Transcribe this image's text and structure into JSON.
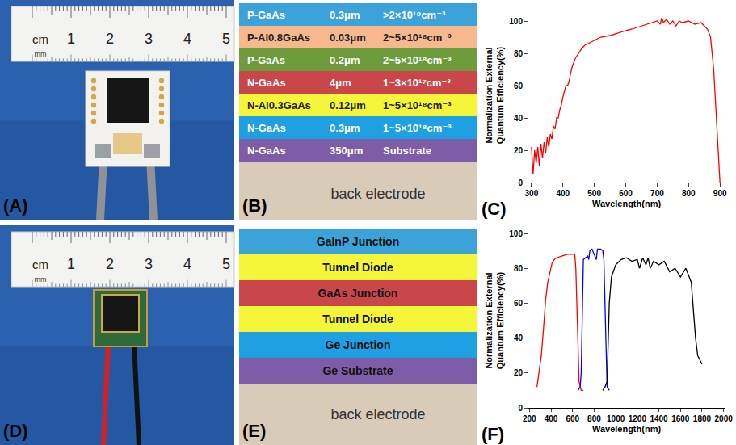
{
  "panels": {
    "A": {
      "label": "(A)",
      "ruler": {
        "unit": "cm",
        "numbers": [
          "1",
          "2",
          "3",
          "4",
          "5"
        ],
        "small_unit": "mm"
      }
    },
    "B": {
      "label": "(B)",
      "layers": [
        {
          "material": "P-GaAs",
          "thickness": "0.3μm",
          "doping": ">2×10¹⁹cm⁻³",
          "color": "#3ba3d9"
        },
        {
          "material": "P-Al0.8GaAs",
          "thickness": "0.03μm",
          "doping": "2~5×10¹⁸cm⁻³",
          "color": "#f7b88e"
        },
        {
          "material": "P-GaAs",
          "thickness": "0.2μm",
          "doping": "2~5×10¹⁸cm⁻³",
          "color": "#6e9b3b"
        },
        {
          "material": "N-GaAs",
          "thickness": "4μm",
          "doping": "1~3×10¹⁷cm⁻³",
          "color": "#c9474b"
        },
        {
          "material": "N-Al0.3GaAs",
          "thickness": "0.12μm",
          "doping": "1~5×10¹⁸cm⁻³",
          "color": "#f5f53a"
        },
        {
          "material": "N-GaAs",
          "thickness": "0.3μm",
          "doping": "1~5×10¹⁸cm⁻³",
          "color": "#1fa0e3"
        },
        {
          "material": "N-GaAs",
          "thickness": "350μm",
          "doping": "Substrate",
          "color": "#7d5da8"
        }
      ],
      "base": {
        "text": "back electrode",
        "color": "#d8ccb8"
      }
    },
    "C": {
      "label": "(C)"
    },
    "D": {
      "label": "(D)",
      "ruler": {
        "unit": "cm",
        "numbers": [
          "1",
          "2",
          "3",
          "4",
          "5"
        ],
        "small_unit": "mm"
      }
    },
    "E": {
      "label": "(E)",
      "layers": [
        {
          "material": "GaInP Junction",
          "color": "#3ba3d9"
        },
        {
          "material": "Tunnel Diode",
          "color": "#f5f53a"
        },
        {
          "material": "GaAs Junction",
          "color": "#c9474b"
        },
        {
          "material": "Tunnel Diode",
          "color": "#f5f53a"
        },
        {
          "material": "Ge Junction",
          "color": "#1fa0e3"
        },
        {
          "material": "Ge Substrate",
          "color": "#7d5da8"
        }
      ],
      "base": {
        "text": "back electrode",
        "color": "#d8ccb8"
      }
    },
    "F": {
      "label": "(F)"
    }
  },
  "chart_data": [
    {
      "type": "line",
      "x_label": "Wavelength(nm)",
      "y_label": "Normalization External Quantum Efficiency(%)",
      "xlim": [
        290,
        915
      ],
      "xticks": [
        300,
        400,
        500,
        600,
        700,
        800,
        900
      ],
      "ylim": [
        0,
        108
      ],
      "yticks": [
        0,
        20,
        40,
        60,
        80,
        100
      ],
      "grid": false,
      "series": [
        {
          "color": "#ff0000",
          "x": [
            300,
            305,
            310,
            315,
            320,
            325,
            330,
            335,
            340,
            345,
            350,
            355,
            360,
            365,
            370,
            375,
            380,
            385,
            390,
            395,
            400,
            405,
            410,
            415,
            420,
            425,
            430,
            440,
            450,
            460,
            470,
            480,
            500,
            520,
            550,
            580,
            600,
            620,
            650,
            680,
            700,
            710,
            715,
            720,
            730,
            740,
            750,
            760,
            770,
            780,
            800,
            820,
            840,
            850,
            860,
            870,
            880,
            890,
            895,
            900
          ],
          "values": [
            22,
            5,
            20,
            12,
            22,
            10,
            24,
            15,
            25,
            18,
            28,
            22,
            30,
            27,
            35,
            33,
            40,
            40,
            45,
            48,
            53,
            57,
            60,
            60,
            63,
            68,
            72,
            77,
            80,
            83,
            85,
            86,
            88,
            90,
            91,
            93,
            94,
            95,
            97,
            99,
            100,
            98,
            102,
            99,
            101,
            98,
            100,
            97,
            100,
            99,
            100,
            98,
            99,
            97,
            95,
            90,
            70,
            35,
            15,
            0
          ]
        }
      ]
    },
    {
      "type": "line",
      "x_label": "Wavelength(nm)",
      "y_label": "Normalization External Quantum Efficiency(%)",
      "xlim": [
        190,
        2010
      ],
      "xticks": [
        200,
        400,
        600,
        800,
        1000,
        1200,
        1400,
        1600,
        1800,
        2000
      ],
      "ylim": [
        0,
        100
      ],
      "yticks": [
        0,
        20,
        40,
        60,
        80,
        100
      ],
      "grid": false,
      "series": [
        {
          "color": "#ff0000",
          "x": [
            270,
            290,
            310,
            330,
            350,
            370,
            390,
            410,
            430,
            450,
            500,
            550,
            600,
            620,
            630,
            640,
            650,
            660,
            680,
            700
          ],
          "values": [
            12,
            20,
            30,
            45,
            62,
            72,
            78,
            83,
            85,
            86,
            87,
            88,
            88,
            88,
            80,
            55,
            30,
            15,
            10,
            10
          ]
        },
        {
          "color": "#0000ff",
          "x": [
            650,
            670,
            680,
            690,
            700,
            720,
            740,
            750,
            760,
            780,
            800,
            820,
            830,
            860,
            880,
            890,
            900,
            910,
            920,
            940
          ],
          "values": [
            10,
            12,
            20,
            60,
            85,
            86,
            87,
            85,
            90,
            91,
            88,
            85,
            91,
            91,
            90,
            85,
            60,
            30,
            12,
            10
          ]
        },
        {
          "color": "#000000",
          "x": [
            880,
            900,
            920,
            930,
            940,
            960,
            1000,
            1050,
            1100,
            1150,
            1200,
            1220,
            1250,
            1280,
            1300,
            1320,
            1350,
            1400,
            1450,
            1500,
            1550,
            1600,
            1650,
            1700,
            1720,
            1740,
            1760,
            1800
          ],
          "values": [
            10,
            12,
            15,
            40,
            60,
            75,
            82,
            85,
            86,
            84,
            85,
            80,
            86,
            82,
            86,
            80,
            84,
            82,
            84,
            78,
            80,
            75,
            80,
            72,
            55,
            40,
            30,
            25
          ]
        }
      ]
    }
  ]
}
